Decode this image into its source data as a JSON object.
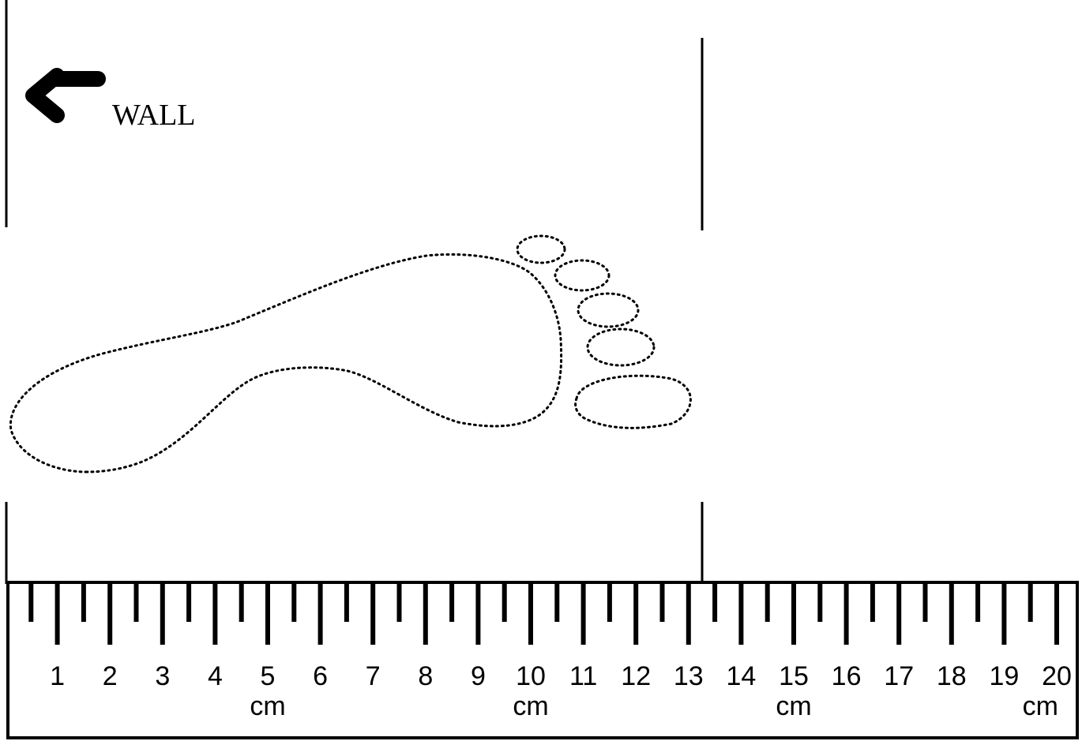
{
  "wall": {
    "label": "WALL",
    "icon": "arrow-left-icon"
  },
  "foot": {
    "icon": "footprint-outline",
    "toe_count": 5
  },
  "ruler": {
    "unit": "cm",
    "numbers": [
      "1",
      "2",
      "3",
      "4",
      "5",
      "6",
      "7",
      "8",
      "9",
      "10",
      "11",
      "12",
      "13",
      "14",
      "15",
      "16",
      "17",
      "18",
      "19",
      "20"
    ],
    "unit_labels_at": [
      5,
      10,
      15,
      20
    ],
    "tick_step_cm": 0.5
  },
  "guide_lines": {
    "left_at_cm": 0,
    "right_at_cm": 13.3
  },
  "colors": {
    "ink": "#000000",
    "foot_dots": "#000000",
    "background": "#ffffff"
  }
}
